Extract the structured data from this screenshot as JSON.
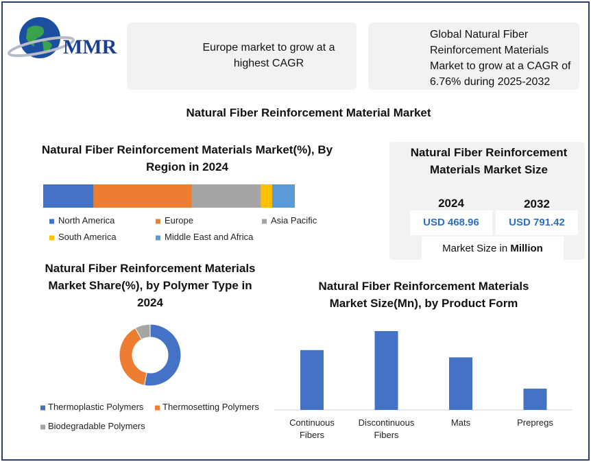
{
  "logo": "MMR",
  "cards": [
    {
      "text": "Europe market to grow at a highest CAGR"
    },
    {
      "text": "Global Natural Fiber Reinforcement Materials Market to grow at a CAGR of 6.76% during 2025-2032"
    }
  ],
  "title": "Natural Fiber Reinforcement Material Market",
  "market_size": {
    "title": "Natural Fiber Reinforcement Materials Market Size",
    "years": [
      "2024",
      "2032"
    ],
    "values": [
      "USD 468.96",
      "USD 791.42"
    ],
    "note": "Market Size in ",
    "note_bold": "Million"
  },
  "chart_data": [
    {
      "type": "stacked_bar",
      "title": "Natural Fiber Reinforcement Materials Market(%), By Region in 2024",
      "series": [
        {
          "name": "North America",
          "color": "#4472c4",
          "values": [
            20
          ]
        },
        {
          "name": "Europe",
          "color": "#ed7d31",
          "values": [
            39
          ]
        },
        {
          "name": "Asia Pacific",
          "color": "#a5a5a5",
          "values": [
            27.5
          ]
        },
        {
          "name": "South America",
          "color": "#ffc000",
          "values": [
            4.5
          ]
        },
        {
          "name": "Middle East and Africa",
          "color": "#5b9bd5",
          "values": [
            9
          ]
        }
      ]
    },
    {
      "type": "pie",
      "donut": true,
      "title": "Natural Fiber Reinforcement Materials Market Share(%), by Polymer Type in 2024",
      "categories": [
        "Thermoplastic Polymers",
        "Thermosetting Polymers",
        "Biodegradable Polymers"
      ],
      "values": [
        53,
        39,
        8
      ],
      "colors": [
        "#4472c4",
        "#ed7d31",
        "#a5a5a5"
      ]
    },
    {
      "type": "bar",
      "title": "Natural Fiber Reinforcement Materials Market Size(Mn), by Product Form",
      "categories": [
        "Continuous Fibers",
        "Discontinuous Fibers",
        "Mats",
        "Prepregs"
      ],
      "values": [
        132,
        174,
        116,
        47
      ],
      "color": "#4472c4"
    }
  ]
}
